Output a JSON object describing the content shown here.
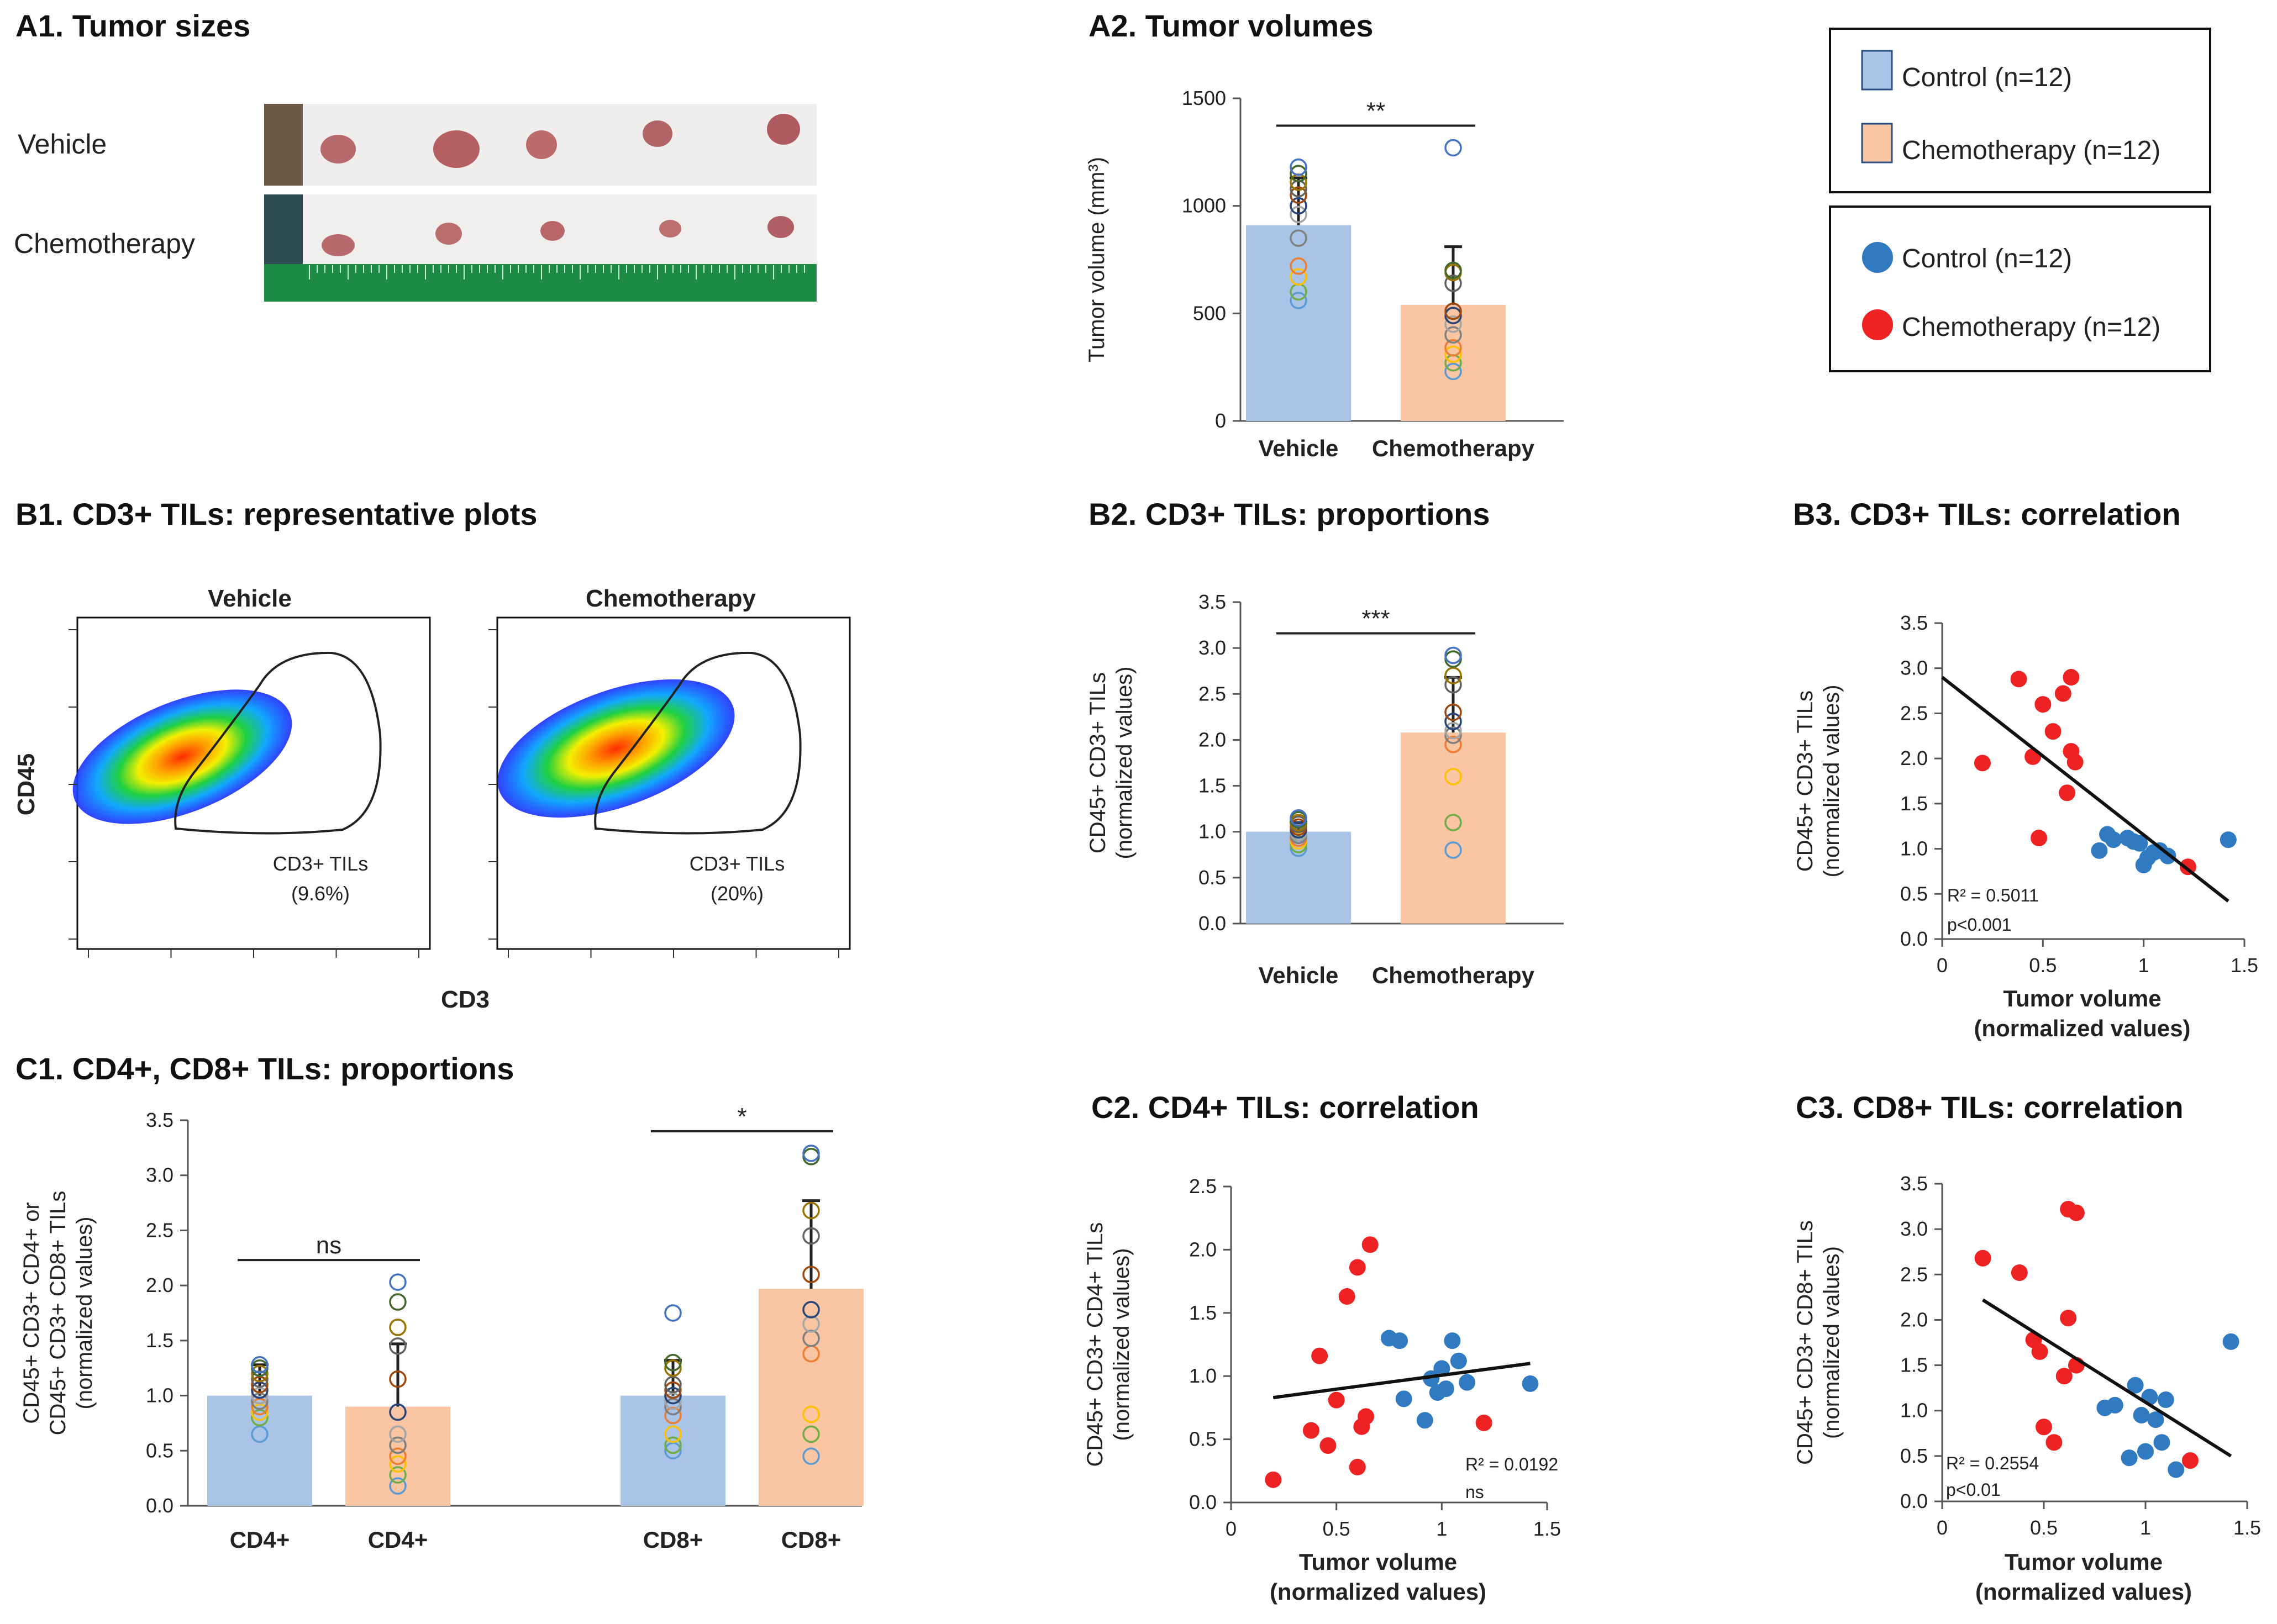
{
  "panels": {
    "a1": {
      "title": "A1. Tumor sizes",
      "row1": "Vehicle",
      "row2": "Chemotherapy"
    },
    "a2": {
      "title": "A2. Tumor volumes"
    },
    "b1": {
      "title": "B1. CD3+ TILs: representative plots",
      "left": "Vehicle",
      "right": "Chemotherapy",
      "ylabel": "CD45",
      "xlabel": "CD3",
      "gate_label": "CD3+ TILs",
      "left_pct": "(9.6%)",
      "right_pct": "(20%)"
    },
    "b2": {
      "title": "B2. CD3+ TILs: proportions"
    },
    "b3": {
      "title": "B3. CD3+ TILs: correlation"
    },
    "c1": {
      "title": "C1. CD4+, CD8+ TILs: proportions"
    },
    "c2": {
      "title": "C2. CD4+ TILs: correlation"
    },
    "c3": {
      "title": "C3. CD8+ TILs: correlation"
    }
  },
  "legend": {
    "bar_control": "Control (n=12)",
    "bar_chemo": "Chemotherapy (n=12)",
    "dot_control": "Control (n=12)",
    "dot_chemo": "Chemotherapy (n=12)"
  },
  "colors": {
    "control_bar": "#a9c4e6",
    "chemo_bar": "#f9c5a3",
    "control_dot": "#2f7ac0",
    "chemo_dot": "#ee2222",
    "circle_palette": [
      "#5b9bd5",
      "#70ad47",
      "#ffc000",
      "#ed7d31",
      "#7f7f7f",
      "#a5a5a5",
      "#264478",
      "#9e480e",
      "#636363",
      "#997300",
      "#43682b",
      "#4472c4"
    ]
  },
  "chart_data": [
    {
      "id": "a2",
      "type": "bar",
      "categories": [
        "Vehicle",
        "Chemotherapy"
      ],
      "values": [
        910,
        540
      ],
      "errors": [
        220,
        270
      ],
      "ylabel": "Tumor volume (mm³)",
      "ylim": [
        0,
        1500
      ],
      "yticks": [
        0,
        500,
        1000,
        1500
      ],
      "points": [
        [
          560,
          600,
          670,
          720,
          850,
          960,
          1000,
          1050,
          1080,
          1110,
          1150,
          1180
        ],
        [
          230,
          270,
          310,
          340,
          400,
          450,
          490,
          510,
          640,
          690,
          700,
          1270
        ]
      ],
      "sig": [
        {
          "from": 0,
          "to": 1,
          "label": "**"
        }
      ]
    },
    {
      "id": "b2",
      "type": "bar",
      "categories": [
        "Vehicle",
        "Chemotherapy"
      ],
      "values": [
        1.0,
        2.08
      ],
      "errors": [
        0.1,
        0.6
      ],
      "ylabel": [
        "CD45+ CD3+ TILs",
        "(normalized values)"
      ],
      "ylim": [
        0,
        3.5
      ],
      "yticks": [
        0,
        0.5,
        1.0,
        1.5,
        2.0,
        2.5,
        3.0,
        3.5
      ],
      "points": [
        [
          0.82,
          0.86,
          0.9,
          0.93,
          0.96,
          0.99,
          1.02,
          1.05,
          1.08,
          1.1,
          1.13,
          1.15
        ],
        [
          0.8,
          1.1,
          1.6,
          1.95,
          2.05,
          2.1,
          2.2,
          2.3,
          2.6,
          2.7,
          2.88,
          2.92
        ]
      ],
      "sig": [
        {
          "from": 0,
          "to": 1,
          "label": "***"
        }
      ]
    },
    {
      "id": "c1",
      "type": "bar",
      "categories": [
        "CD4+",
        "CD4+",
        "CD8+",
        "CD8+"
      ],
      "values": [
        1.0,
        0.9,
        1.0,
        1.97
      ],
      "errors": [
        0.28,
        0.57,
        0.32,
        0.8
      ],
      "ylabel": [
        "CD45+ CD3+ CD4+ or",
        "CD45+ CD3+ CD8+ TILs",
        "(normalized values)"
      ],
      "ylim": [
        0,
        3.5
      ],
      "yticks": [
        0,
        0.5,
        1.0,
        1.5,
        2.0,
        2.5,
        3.0,
        3.5
      ],
      "points": [
        [
          0.65,
          0.8,
          0.85,
          0.9,
          0.95,
          1.0,
          1.05,
          1.1,
          1.15,
          1.2,
          1.25,
          1.28
        ],
        [
          0.18,
          0.28,
          0.38,
          0.45,
          0.55,
          0.65,
          0.85,
          1.15,
          1.45,
          1.62,
          1.85,
          2.03
        ],
        [
          0.5,
          0.55,
          0.65,
          0.82,
          0.9,
          0.95,
          1.0,
          1.05,
          1.1,
          1.25,
          1.3,
          1.75
        ],
        [
          0.45,
          0.65,
          0.83,
          1.38,
          1.52,
          1.65,
          1.78,
          2.1,
          2.45,
          2.68,
          3.17,
          3.2
        ]
      ],
      "sig": [
        {
          "from": 0,
          "to": 1,
          "label": "ns"
        },
        {
          "from": 2,
          "to": 3,
          "label": "*"
        }
      ]
    },
    {
      "id": "b3",
      "type": "scatter",
      "xlabel": [
        "Tumor volume",
        "(normalized values)"
      ],
      "ylabel": [
        "CD45+ CD3+ TILs",
        "(normalized values)"
      ],
      "xlim": [
        0,
        1.5
      ],
      "xticks": [
        0,
        0.5,
        1,
        1.5
      ],
      "ylim": [
        0,
        3.5
      ],
      "yticks": [
        0,
        0.5,
        1.0,
        1.5,
        2.0,
        2.5,
        3.0,
        3.5
      ],
      "series": [
        {
          "name": "Chemotherapy",
          "x": [
            0.2,
            0.38,
            0.45,
            0.5,
            0.55,
            0.6,
            0.64,
            0.64,
            0.66,
            0.48,
            0.62,
            1.22
          ],
          "y": [
            1.95,
            2.88,
            2.02,
            2.6,
            2.3,
            2.72,
            2.9,
            2.08,
            1.96,
            1.12,
            1.62,
            0.8
          ]
        },
        {
          "name": "Control",
          "x": [
            0.78,
            0.82,
            0.85,
            0.92,
            0.95,
            0.98,
            1.0,
            1.02,
            1.05,
            1.08,
            1.12,
            1.42
          ],
          "y": [
            0.98,
            1.16,
            1.1,
            1.12,
            1.08,
            1.06,
            0.82,
            0.9,
            0.96,
            0.98,
            0.92,
            1.1
          ]
        }
      ],
      "trend": [
        [
          0,
          2.9
        ],
        [
          1.42,
          0.42
        ]
      ],
      "stats": [
        "R² = 0.5011",
        "p<0.001"
      ]
    },
    {
      "id": "c2",
      "type": "scatter",
      "xlabel": [
        "Tumor volume",
        "(normalized values)"
      ],
      "ylabel": [
        "CD45+ CD3+ CD4+ TILs",
        "(normalized values)"
      ],
      "xlim": [
        0,
        1.5
      ],
      "xticks": [
        0,
        0.5,
        1,
        1.5
      ],
      "ylim": [
        0,
        2.5
      ],
      "yticks": [
        0,
        0.5,
        1.0,
        1.5,
        2.0,
        2.5
      ],
      "series": [
        {
          "name": "Chemotherapy",
          "x": [
            0.2,
            0.38,
            0.42,
            0.46,
            0.5,
            0.55,
            0.6,
            0.62,
            0.66,
            0.64,
            0.6,
            1.2
          ],
          "y": [
            0.18,
            0.57,
            1.16,
            0.45,
            0.81,
            1.63,
            1.86,
            0.6,
            2.04,
            0.68,
            0.28,
            0.63
          ]
        },
        {
          "name": "Control",
          "x": [
            0.75,
            0.8,
            0.82,
            0.92,
            0.95,
            0.98,
            1.0,
            1.02,
            1.05,
            1.08,
            1.12,
            1.42
          ],
          "y": [
            1.3,
            1.28,
            0.82,
            0.65,
            0.98,
            0.87,
            1.06,
            0.9,
            1.28,
            1.12,
            0.95,
            0.94
          ]
        }
      ],
      "trend": [
        [
          0.2,
          0.83
        ],
        [
          1.42,
          1.1
        ]
      ],
      "stats": [
        "R² = 0.0192",
        "ns"
      ]
    },
    {
      "id": "c3",
      "type": "scatter",
      "xlabel": [
        "Tumor volume",
        "(normalized values)"
      ],
      "ylabel": [
        "CD45+ CD3+ CD8+ TILs",
        "(normalized values)"
      ],
      "xlim": [
        0,
        1.5
      ],
      "xticks": [
        0,
        0.5,
        1,
        1.5
      ],
      "ylim": [
        0,
        3.5
      ],
      "yticks": [
        0,
        0.5,
        1.0,
        1.5,
        2.0,
        2.5,
        3.0,
        3.5
      ],
      "series": [
        {
          "name": "Chemotherapy",
          "x": [
            0.2,
            0.38,
            0.45,
            0.48,
            0.5,
            0.55,
            0.6,
            0.62,
            0.62,
            0.66,
            0.66,
            1.22
          ],
          "y": [
            2.68,
            2.52,
            1.78,
            1.65,
            0.82,
            0.65,
            1.38,
            3.22,
            2.02,
            3.18,
            1.5,
            0.45
          ]
        },
        {
          "name": "Control",
          "x": [
            0.8,
            0.85,
            0.92,
            0.95,
            0.98,
            1.0,
            1.02,
            1.05,
            1.08,
            1.1,
            1.15,
            1.42
          ],
          "y": [
            1.03,
            1.06,
            0.48,
            1.28,
            0.95,
            0.55,
            1.15,
            0.9,
            0.65,
            1.12,
            0.35,
            1.76
          ]
        }
      ],
      "trend": [
        [
          0.2,
          2.22
        ],
        [
          1.42,
          0.5
        ]
      ],
      "stats": [
        "R² = 0.2554",
        "p<0.01"
      ]
    }
  ]
}
